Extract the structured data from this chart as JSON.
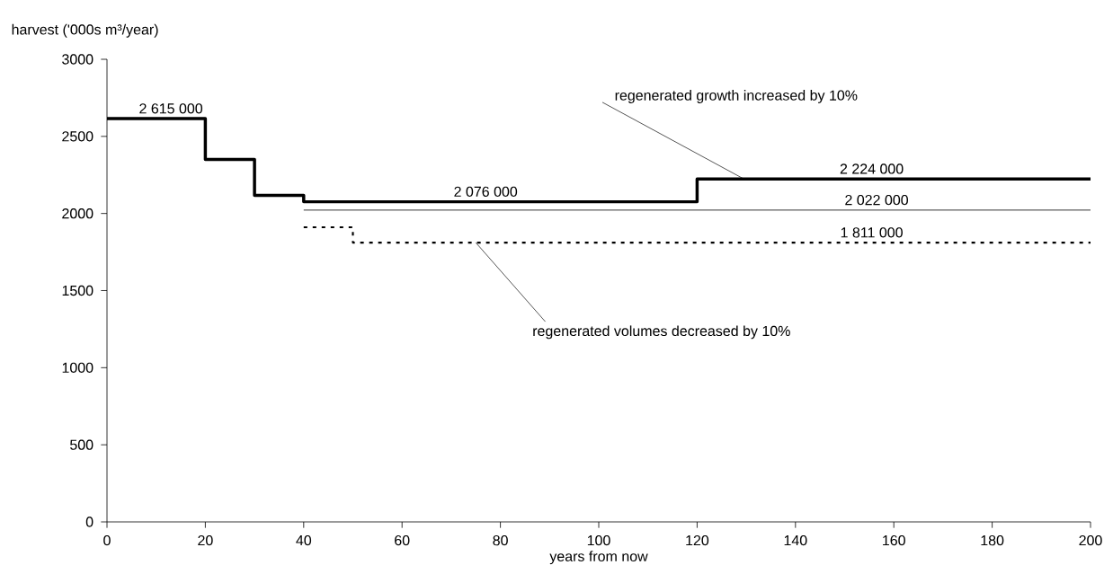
{
  "chart_data": {
    "type": "step",
    "xlabel": "years from now",
    "ylabel": "harvest ('000s m³/year)",
    "series": [
      {
        "color": "#000000",
        "line_style": "solid",
        "x": [
          0,
          20,
          30,
          40,
          120,
          200
        ],
        "values": [
          2615,
          2351,
          2117,
          2076,
          2224,
          2224
        ]
      },
      {
        "color": "#000000",
        "line_style": "solid",
        "x": [
          40,
          200
        ],
        "values": [
          2022,
          2022
        ]
      },
      {
        "color": "#000000",
        "line_style": "dotted",
        "x": [
          40,
          50,
          200
        ],
        "values": [
          1911,
          1811,
          1811
        ]
      }
    ],
    "xlim": [
      0,
      200
    ],
    "xticks": [
      0,
      20,
      40,
      60,
      80,
      100,
      120,
      140,
      160,
      180,
      200
    ],
    "ylim": [
      0,
      3000
    ],
    "yticks": [
      0,
      500,
      1000,
      1500,
      2000,
      2500,
      3000
    ],
    "grid": false,
    "marker": "none",
    "annotations": [
      {
        "text": "2 615 000",
        "x": 13,
        "y": 2615
      },
      {
        "text": "2 076 000",
        "x": 77,
        "y": 2076
      },
      {
        "text": "2 224 000",
        "x": 155.5,
        "y": 2224
      },
      {
        "text": "2 022 000",
        "x": 156.5,
        "y": 2022
      },
      {
        "text": "1 811 000",
        "x": 155.5,
        "y": 1811
      },
      {
        "text": "regenerated growth increased by 10%",
        "x": 129.5,
        "y": 2224
      },
      {
        "text": "regenerated volumes decreased by 10%",
        "x": 75,
        "y": 1811
      }
    ]
  }
}
